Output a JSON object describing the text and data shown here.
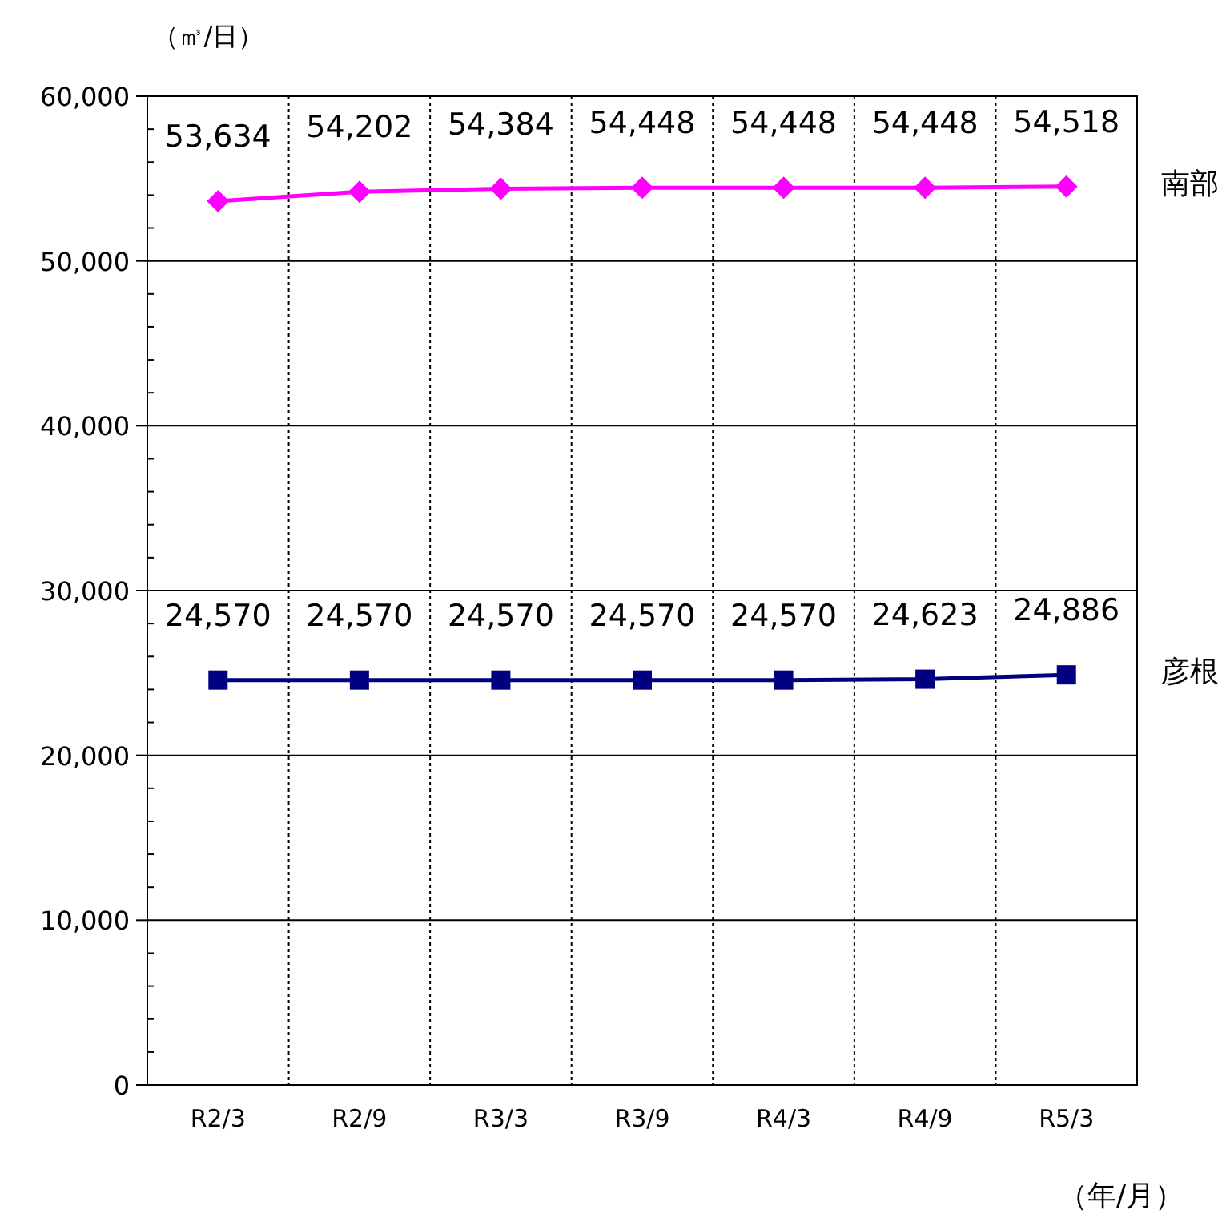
{
  "chart_data": {
    "type": "line",
    "ylabel": "（㎥/日）",
    "xlabel": "（年/月）",
    "categories": [
      "R2/3",
      "R2/9",
      "R3/3",
      "R3/9",
      "R4/3",
      "R4/9",
      "R5/3"
    ],
    "series": [
      {
        "name": "南部",
        "color": "#ff00ff",
        "marker": "diamond",
        "values": [
          53634,
          54202,
          54384,
          54448,
          54448,
          54448,
          54518
        ],
        "value_labels": [
          "53,634",
          "54,202",
          "54,384",
          "54,448",
          "54,448",
          "54,448",
          "54,518"
        ]
      },
      {
        "name": "彦根",
        "color": "#000080",
        "marker": "square",
        "values": [
          24570,
          24570,
          24570,
          24570,
          24570,
          24623,
          24886
        ],
        "value_labels": [
          "24,570",
          "24,570",
          "24,570",
          "24,570",
          "24,570",
          "24,623",
          "24,886"
        ]
      }
    ],
    "ylim": [
      0,
      60000
    ],
    "yticks": [
      0,
      {
        "value": 2000,
        "label": null
      },
      {
        "value": 4000,
        "label": null
      },
      {
        "value": 6000,
        "label": null
      },
      {
        "value": 8000,
        "label": null
      },
      "10,000",
      {
        "value": 12000,
        "label": null
      },
      {
        "value": 14000,
        "label": null
      },
      {
        "value": 16000,
        "label": null
      },
      {
        "value": 18000,
        "label": null
      },
      {
        "value": 20000,
        "label": "20,000"
      },
      {
        "value": 22000,
        "label": null
      },
      {
        "value": 24000,
        "label": null
      },
      {
        "value": 26000,
        "label": null
      },
      {
        "value": 28000,
        "label": null
      },
      {
        "value": 30000,
        "label": "30,000"
      },
      {
        "value": 32000,
        "label": null
      },
      {
        "value": 34000,
        "label": null
      },
      {
        "value": 36000,
        "label": null
      },
      {
        "value": 38000,
        "label": null
      },
      {
        "value": 40000,
        "label": "40,000"
      },
      {
        "value": 42000,
        "label": null
      },
      {
        "value": 44000,
        "label": null
      },
      {
        "value": 46000,
        "label": null
      },
      {
        "value": 48000,
        "label": null
      },
      {
        "value": 50000,
        "label": "50,000"
      },
      {
        "value": 52000,
        "label": null
      },
      {
        "value": 54000,
        "label": null
      },
      {
        "value": 56000,
        "label": null
      },
      {
        "value": 58000,
        "label": null
      },
      {
        "value": 60000,
        "label": "60,000"
      }
    ],
    "grid": true,
    "line_style": "solid"
  }
}
